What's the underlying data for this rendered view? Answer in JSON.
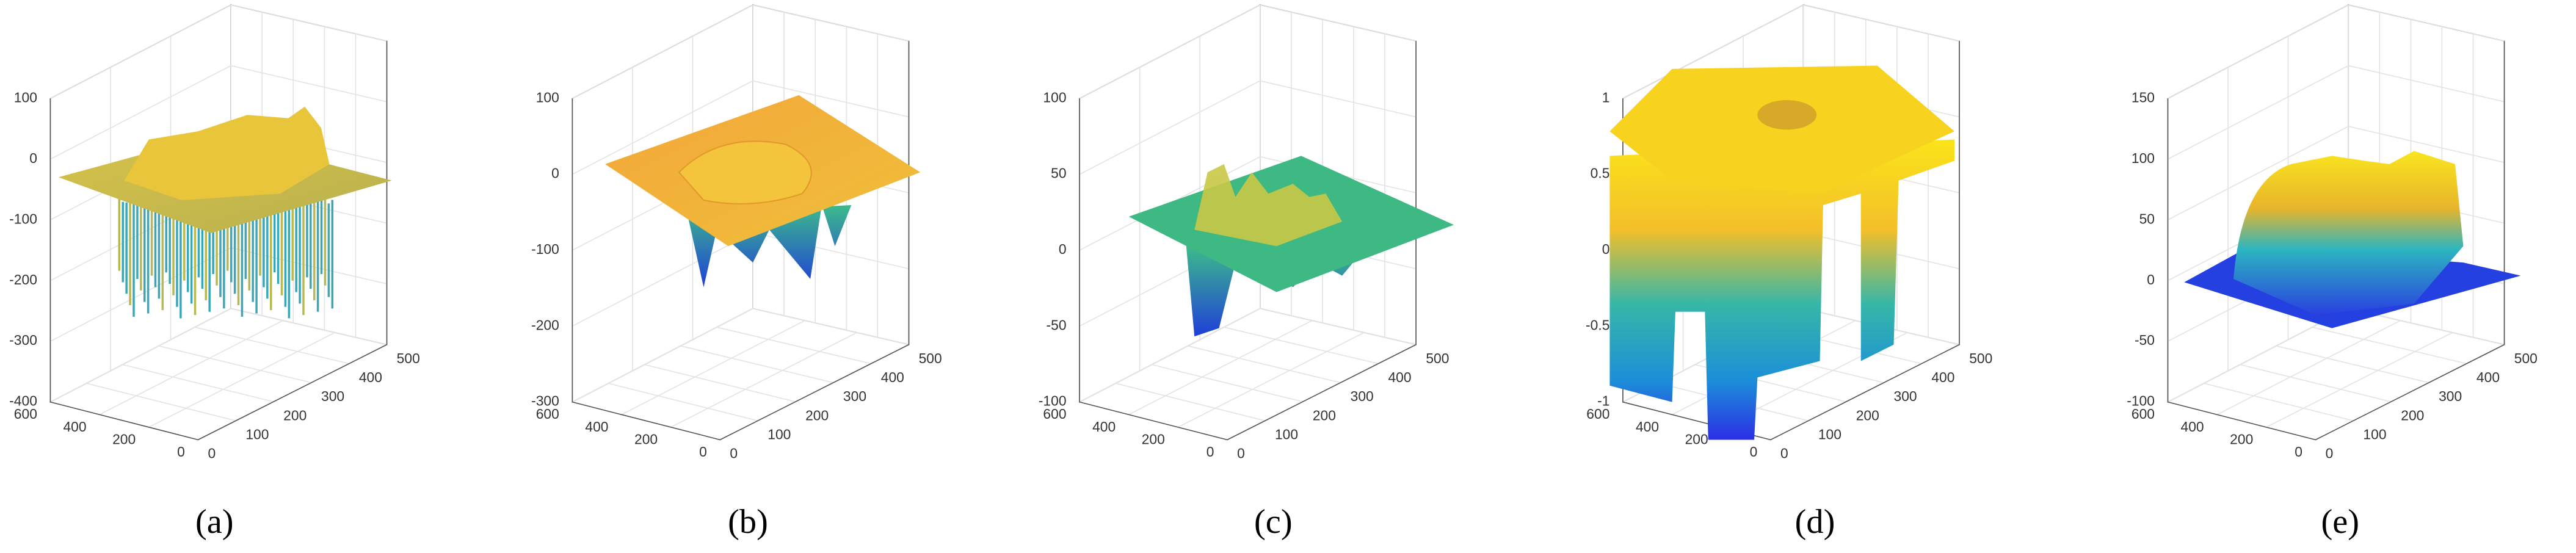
{
  "panels": [
    {
      "caption": "(a)",
      "z_ticks": [
        "100",
        "0",
        "-100",
        "-200",
        "-300",
        "-400"
      ],
      "y_ticks": [
        "600",
        "400",
        "200",
        "0"
      ],
      "x_ticks": [
        "0",
        "100",
        "200",
        "300",
        "400",
        "500"
      ]
    },
    {
      "caption": "(b)",
      "z_ticks": [
        "100",
        "0",
        "-100",
        "-200",
        "-300"
      ],
      "y_ticks": [
        "600",
        "400",
        "200",
        "0"
      ],
      "x_ticks": [
        "0",
        "100",
        "200",
        "300",
        "400",
        "500"
      ]
    },
    {
      "caption": "(c)",
      "z_ticks": [
        "100",
        "50",
        "0",
        "-50",
        "-100"
      ],
      "y_ticks": [
        "600",
        "400",
        "200",
        "0"
      ],
      "x_ticks": [
        "0",
        "100",
        "200",
        "300",
        "400",
        "500"
      ]
    },
    {
      "caption": "(d)",
      "z_ticks": [
        "1",
        "0.5",
        "0",
        "-0.5",
        "-1"
      ],
      "y_ticks": [
        "600",
        "400",
        "200",
        "0"
      ],
      "x_ticks": [
        "0",
        "100",
        "200",
        "300",
        "400",
        "500"
      ]
    },
    {
      "caption": "(e)",
      "z_ticks": [
        "150",
        "100",
        "50",
        "0",
        "-50",
        "-100"
      ],
      "y_ticks": [
        "600",
        "400",
        "200",
        "0"
      ],
      "x_ticks": [
        "0",
        "100",
        "200",
        "300",
        "400",
        "500"
      ]
    }
  ]
}
